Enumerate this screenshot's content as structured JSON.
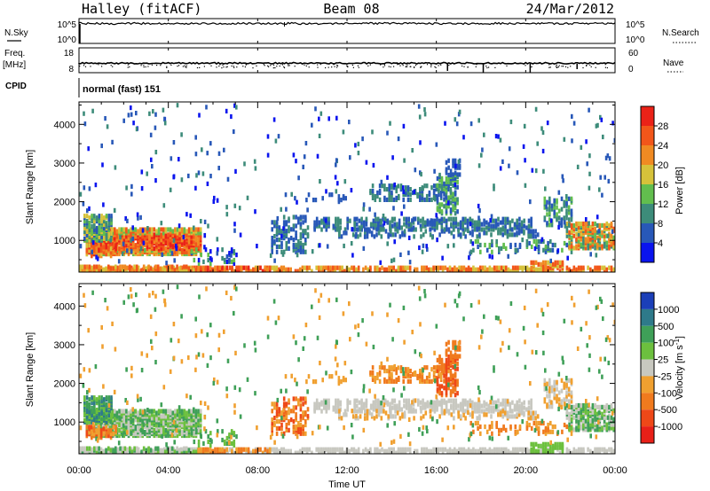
{
  "header": {
    "station": "Halley (fitACF)",
    "beam": "Beam 08",
    "date": "24/Mar/2012"
  },
  "top_panels": {
    "nsky_label": "N.Sky",
    "nsky_ticks": [
      "10^5",
      "10^0"
    ],
    "nsearch_label": "N.Search",
    "nsearch_ticks": [
      "10^5",
      "10^0"
    ],
    "freq_label": "Freq.",
    "freq_unit": "[MHz]",
    "freq_ticks": [
      "18",
      "8"
    ],
    "nave_label": "Nave",
    "nave_ticks": [
      "60",
      "0"
    ],
    "cpid_label": "CPID",
    "cpid_value": "normal (fast) 151"
  },
  "chart_data": [
    {
      "type": "heatmap",
      "name": "power-panel",
      "ylabel": "Slant Range [km]",
      "xlabel": "",
      "ylim": [
        180,
        4580
      ],
      "xlim_hours": [
        0,
        24
      ],
      "y_ticks": [
        "1000",
        "2000",
        "3000",
        "4000"
      ],
      "colorbar": {
        "label": "Power [dB]",
        "ticks": [
          "4",
          "8",
          "12",
          "16",
          "20",
          "24",
          "28"
        ],
        "colors": [
          "#0a14ee",
          "#2858b8",
          "#3d8c7a",
          "#62be4e",
          "#d6c23a",
          "#f08a22",
          "#f2561a",
          "#ea2218"
        ]
      }
    },
    {
      "type": "heatmap",
      "name": "velocity-panel",
      "ylabel": "Slant Range [km]",
      "xlabel": "Time UT",
      "ylim": [
        180,
        4580
      ],
      "xlim_hours": [
        0,
        24
      ],
      "y_ticks": [
        "1000",
        "2000",
        "3000",
        "4000"
      ],
      "x_ticks": [
        "00:00",
        "04:00",
        "08:00",
        "12:00",
        "16:00",
        "20:00",
        "00:00"
      ],
      "colorbar": {
        "label": "Velocity [m s",
        "label_sup": "-1",
        "label_end": "]",
        "ticks": [
          "1000",
          "500",
          "100",
          "25",
          "-25",
          "-100",
          "-500",
          "-1000"
        ],
        "colors": [
          "#1b3fb8",
          "#2e7a8a",
          "#3fa058",
          "#6cc03e",
          "#c8c8c0",
          "#f0a030",
          "#f07a1e",
          "#ee4818",
          "#e82018"
        ]
      }
    }
  ]
}
